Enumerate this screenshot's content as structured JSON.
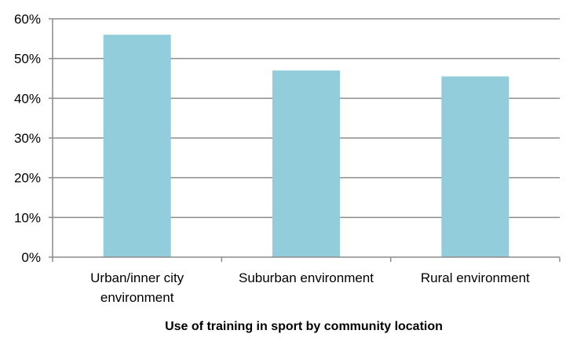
{
  "chart_data": {
    "type": "bar",
    "categories": [
      [
        "Urban/inner city",
        "environment"
      ],
      [
        "Suburban environment"
      ],
      [
        "Rural environment"
      ]
    ],
    "values": [
      56,
      47,
      45.5
    ],
    "title": "",
    "xlabel": "Use of training in sport by community location",
    "ylabel": "",
    "ylim": [
      0,
      60
    ],
    "yticks": [
      "0%",
      "10%",
      "20%",
      "30%",
      "40%",
      "50%",
      "60%"
    ],
    "grid": true,
    "legend": "none",
    "bar_color": "#92CDDC",
    "grid_color": "#8c8c8c"
  }
}
